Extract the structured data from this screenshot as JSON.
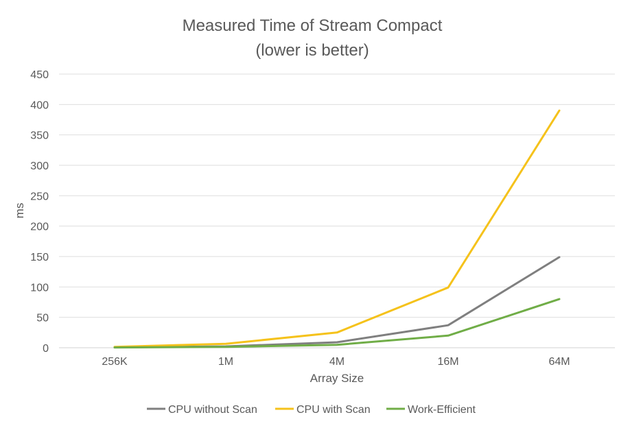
{
  "chart_data": {
    "type": "line",
    "title": "Measured Time of Stream Compact",
    "subtitle": "(lower is better)",
    "xlabel": "Array Size",
    "ylabel": "ms",
    "categories": [
      "256K",
      "1M",
      "4M",
      "16M",
      "64M"
    ],
    "ylim": [
      0,
      450
    ],
    "yticks": [
      0,
      50,
      100,
      150,
      200,
      250,
      300,
      350,
      400,
      450
    ],
    "grid": true,
    "legend_position": "bottom",
    "series": [
      {
        "name": "CPU without Scan",
        "color": "#7f7f7f",
        "values": [
          0.6,
          2.3,
          9,
          37,
          149
        ]
      },
      {
        "name": "CPU with Scan",
        "color": "#f5c21b",
        "values": [
          1.5,
          6.5,
          25,
          99,
          390
        ]
      },
      {
        "name": "Work-Efficient",
        "color": "#70ad47",
        "values": [
          0.4,
          1.3,
          4.8,
          20,
          80
        ]
      }
    ]
  }
}
